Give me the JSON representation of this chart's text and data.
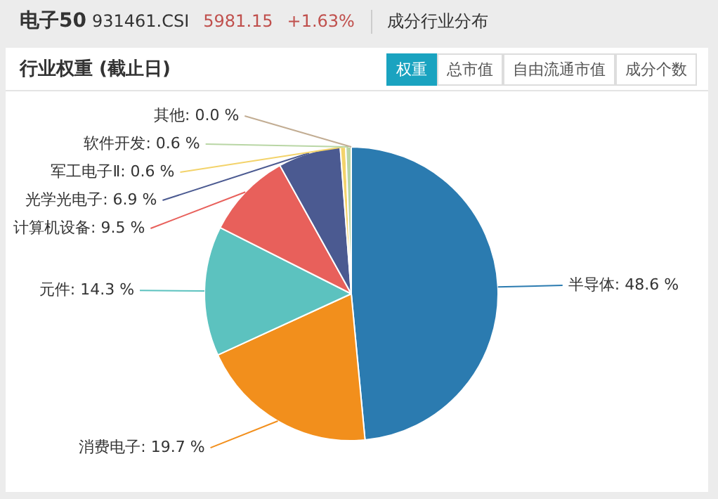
{
  "chart_data": {
    "type": "pie",
    "title": "电子50",
    "subtitle": "行业权重 (截止日)",
    "annotations": [
      "931461.CSI",
      "5981.15",
      "+1.63%",
      "成分行业分布",
      "权重",
      "总市值",
      "自由流通市值",
      "成分个数"
    ],
    "categories": [
      "半导体",
      "消费电子",
      "元件",
      "计算机设备",
      "光学光电子",
      "军工电子Ⅱ",
      "软件开发",
      "其他"
    ],
    "values": [
      48.6,
      19.7,
      14.3,
      9.5,
      6.9,
      0.6,
      0.6,
      0.0
    ],
    "value_labels": [
      ": 48.6 %",
      ": 19.7 %",
      ": 14.3 %",
      ": 9.5 %",
      ": 6.9 %",
      ": 0.6 %",
      ": 0.6 %",
      ": 0.0 %"
    ],
    "colors": [
      "#2b7bb0",
      "#f28f1c",
      "#5cc2bf",
      "#e8605b",
      "#4b5a91",
      "#f3d36b",
      "#b9d6a5",
      "#c2ad93"
    ],
    "legend": false
  }
}
